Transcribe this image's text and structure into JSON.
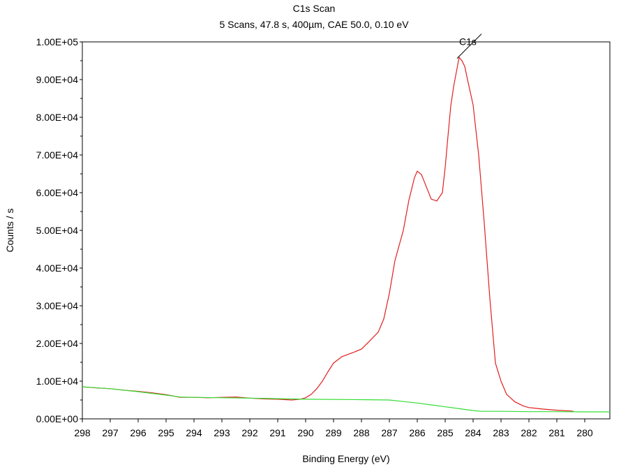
{
  "chart_data": {
    "type": "line",
    "title": "C1s Scan",
    "subtitle": "5 Scans,  47.8 s,  400µm,  CAE 50.0,  0.10 eV",
    "xlabel": "Binding Energy (eV)",
    "ylabel": "Counts / s",
    "xlim": [
      298,
      279.1
    ],
    "ylim": [
      0,
      100000
    ],
    "x_reversed": true,
    "x_ticks": [
      "298",
      "297",
      "296",
      "295",
      "294",
      "293",
      "292",
      "291",
      "290",
      "289",
      "288",
      "287",
      "286",
      "285",
      "284",
      "283",
      "282",
      "281",
      "280"
    ],
    "y_ticks": [
      "0.00E+00",
      "1.00E+04",
      "2.00E+04",
      "3.00E+04",
      "4.00E+04",
      "5.00E+04",
      "6.00E+04",
      "7.00E+04",
      "8.00E+04",
      "9.00E+04",
      "1.00E+05"
    ],
    "grid": false,
    "annotation": {
      "text": "C1s",
      "x": 284.5,
      "y": 96000
    },
    "series": [
      {
        "color": "#e0201f",
        "x": [
          298,
          297.5,
          297,
          296.5,
          296,
          295.5,
          295,
          294.7,
          294.5,
          294,
          293.5,
          293,
          292.5,
          292,
          291.5,
          291,
          290.5,
          290.2,
          290,
          289.8,
          289.6,
          289.4,
          289.2,
          289,
          288.7,
          288.3,
          288,
          287.7,
          287.4,
          287.2,
          287,
          286.8,
          286.5,
          286.3,
          286.1,
          286,
          285.85,
          285.7,
          285.5,
          285.3,
          285.1,
          285,
          284.9,
          284.8,
          284.7,
          284.6,
          284.5,
          284.4,
          284.3,
          284.2,
          284,
          283.8,
          283.6,
          283.4,
          283.2,
          283,
          282.8,
          282.5,
          282.2,
          282,
          281.5,
          281,
          280.5,
          280.4
        ],
        "y": [
          8500,
          8200,
          8000,
          7600,
          7300,
          6900,
          6400,
          6000,
          5700,
          5700,
          5600,
          5700,
          5800,
          5500,
          5300,
          5200,
          5000,
          5200,
          5600,
          6500,
          8000,
          10000,
          12500,
          14800,
          16500,
          17600,
          18500,
          20700,
          23000,
          26500,
          33300,
          42000,
          50000,
          58000,
          64000,
          65700,
          64800,
          62000,
          58300,
          57800,
          60000,
          66700,
          75000,
          83000,
          88000,
          92000,
          95900,
          95000,
          93500,
          90000,
          83300,
          70000,
          51900,
          32000,
          14800,
          10000,
          6500,
          4500,
          3400,
          3000,
          2600,
          2300,
          2100,
          2000
        ]
      },
      {
        "color": "#33dd33",
        "x": [
          298,
          297,
          296,
          295,
          294.5,
          294,
          292,
          290,
          288,
          287,
          286.5,
          286,
          285.5,
          285,
          284.5,
          284,
          283.7,
          283,
          282,
          281,
          280,
          279.1
        ],
        "y": [
          8500,
          8000,
          7200,
          6300,
          5800,
          5700,
          5500,
          5200,
          5100,
          5000,
          4600,
          4200,
          3700,
          3200,
          2700,
          2200,
          2000,
          2000,
          1900,
          1900,
          1850,
          1850
        ]
      }
    ]
  }
}
